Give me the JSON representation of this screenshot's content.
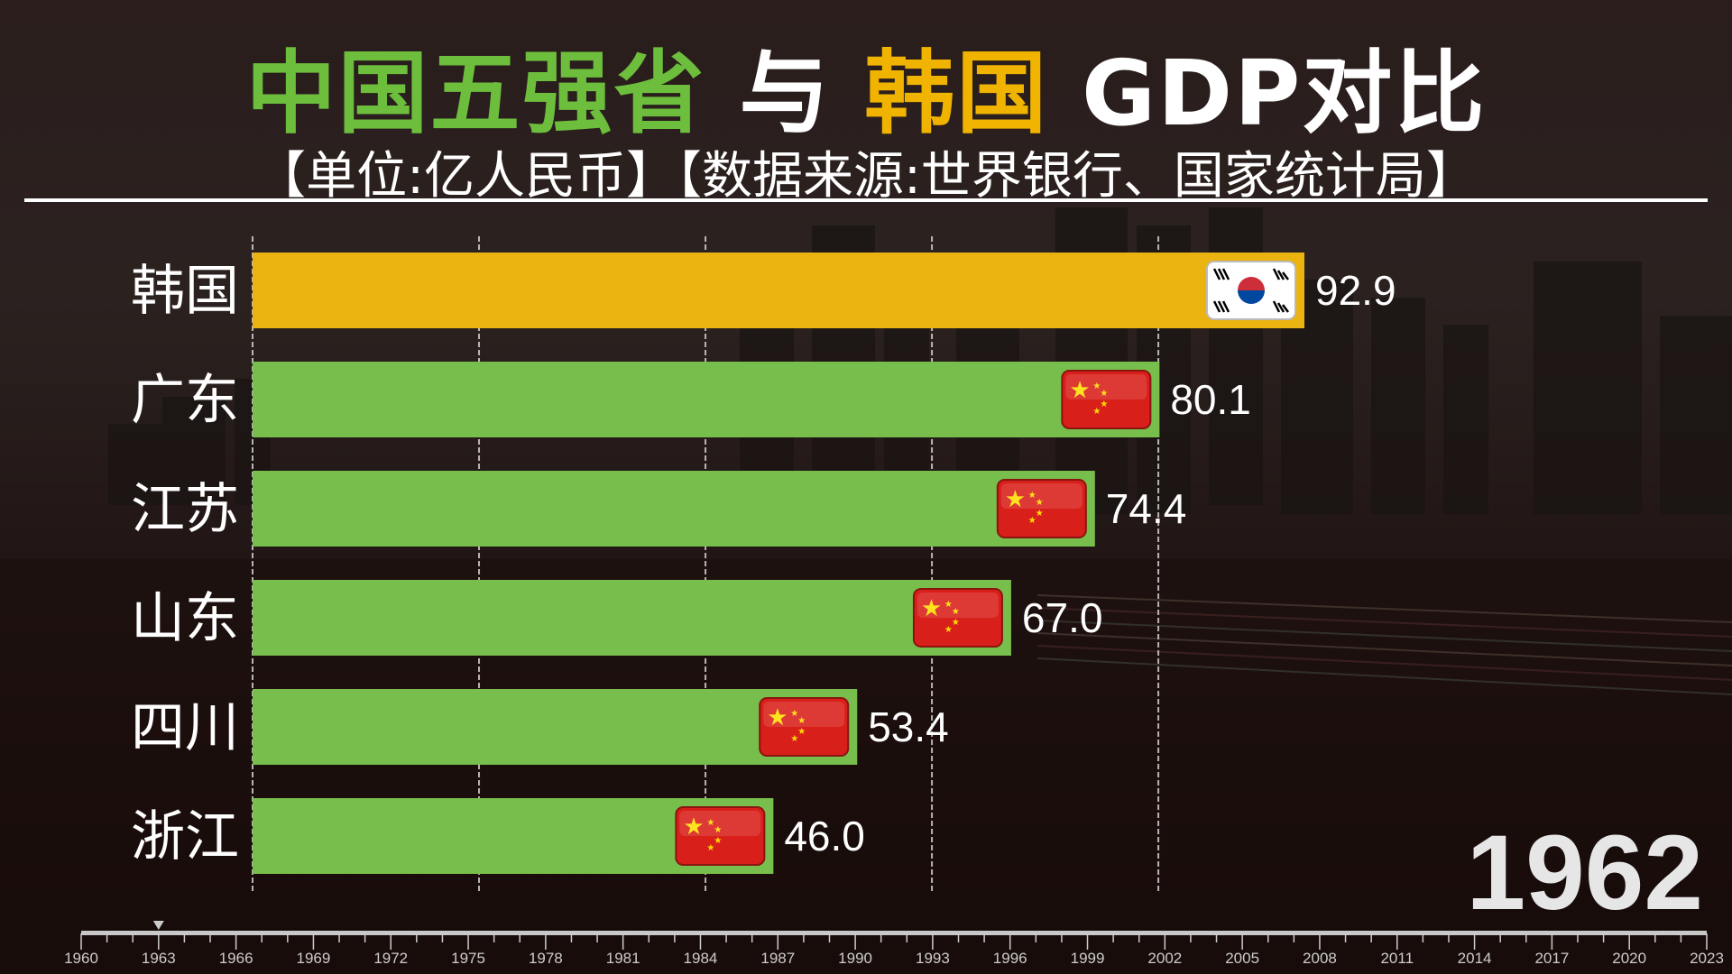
{
  "title": {
    "part1": "中国五强省",
    "part2": "与",
    "part3": "韩国",
    "part4": "GDP对比",
    "colors": {
      "part1": "#6cbe3c",
      "part2": "#ffffff",
      "part3": "#f0b400",
      "part4": "#ffffff"
    }
  },
  "subtitle": "【单位:亿人民币】【数据来源:世界银行、国家统计局】",
  "current_year": "1962",
  "chart_data": {
    "type": "bar",
    "orientation": "horizontal",
    "categories": [
      "韩国",
      "广东",
      "江苏",
      "山东",
      "四川",
      "浙江"
    ],
    "values": [
      92.9,
      80.1,
      74.4,
      67.0,
      53.4,
      46.0
    ],
    "value_labels": [
      "92.9",
      "80.1",
      "74.4",
      "67.0",
      "53.4",
      "46.0"
    ],
    "flags": [
      "south-korea-flag",
      "china-flag",
      "china-flag",
      "china-flag",
      "china-flag",
      "china-flag"
    ],
    "colors": [
      "#ebb30f",
      "#78be4c",
      "#78be4c",
      "#78be4c",
      "#78be4c",
      "#78be4c"
    ],
    "xlim": [
      0,
      100
    ],
    "gridlines": [
      0,
      20,
      40,
      60,
      80
    ],
    "grid": true
  },
  "timeline": {
    "start": 1960,
    "end": 2023,
    "labels": [
      "1960",
      "1963",
      "1966",
      "1969",
      "1972",
      "1975",
      "1978",
      "1981",
      "1984",
      "1987",
      "1990",
      "1993",
      "1996",
      "1999",
      "2002",
      "2005",
      "2008",
      "2011",
      "2014",
      "2017",
      "2020",
      "2023"
    ],
    "marker_year": 1963
  }
}
